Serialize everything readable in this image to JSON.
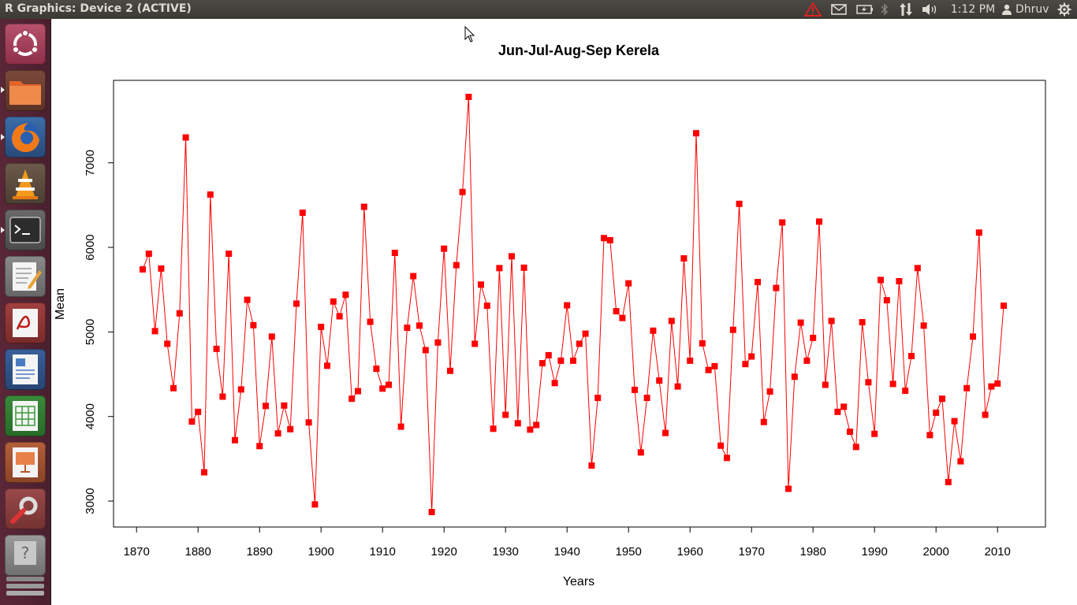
{
  "window": {
    "title": "R Graphics: Device 2 (ACTIVE)"
  },
  "panel": {
    "clock": "1:12 PM",
    "user": "Dhruv"
  },
  "launcher": {
    "items": [
      {
        "name": "ubuntu-dash-icon"
      },
      {
        "name": "files-icon"
      },
      {
        "name": "firefox-icon"
      },
      {
        "name": "vlc-icon"
      },
      {
        "name": "terminal-icon"
      },
      {
        "name": "text-editor-icon"
      },
      {
        "name": "pdf-viewer-icon"
      },
      {
        "name": "writer-icon"
      },
      {
        "name": "calc-icon"
      },
      {
        "name": "impress-icon"
      },
      {
        "name": "system-settings-icon"
      },
      {
        "name": "unknown-app-icon"
      }
    ]
  },
  "chart_data": {
    "type": "line",
    "title": "Jun-Jul-Aug-Sep Kerela",
    "xlabel": "Years",
    "ylabel": "Mean",
    "xlim": [
      1871,
      2011
    ],
    "ylim": [
      2870,
      7780
    ],
    "x_ticks": [
      1870,
      1880,
      1890,
      1900,
      1910,
      1920,
      1930,
      1940,
      1950,
      1960,
      1970,
      1980,
      1990,
      2000,
      2010
    ],
    "y_ticks": [
      3000,
      4000,
      5000,
      6000,
      7000
    ],
    "marker_color": "#ff0000",
    "line_color": "#ff0000",
    "series": [
      {
        "x_start": 1871,
        "values": [
          5740,
          5925,
          5010,
          5750,
          4860,
          4335,
          5220,
          7300,
          3940,
          4055,
          3340,
          6625,
          4800,
          4235,
          5925,
          3720,
          4320,
          5380,
          5080,
          3650,
          4125,
          4945,
          3800,
          4130,
          3850,
          5335,
          6410,
          3930,
          2960,
          5060,
          4600,
          5360,
          5185,
          5440,
          4210,
          4300,
          6480,
          5120,
          4565,
          4330,
          4375,
          5935,
          3880,
          5050,
          5660,
          5075,
          4785,
          2870,
          4875,
          5985,
          4540,
          5790,
          6655,
          7780,
          4860,
          5560,
          5310,
          3855,
          5755,
          4020,
          5895,
          3920,
          5760,
          3845,
          3900,
          4630,
          4725,
          4395,
          4660,
          5315,
          4660,
          4860,
          4980,
          3420,
          4220,
          6110,
          6085,
          5245,
          5165,
          5575,
          4315,
          3575,
          4220,
          5015,
          4425,
          3805,
          5130,
          4355,
          5870,
          4660,
          7350,
          4865,
          4550,
          4595,
          3655,
          3510,
          5025,
          6515,
          4620,
          4710,
          5590,
          3935,
          4295,
          5520,
          6295,
          3145,
          4470,
          5110,
          4660,
          4930,
          6305,
          4375,
          5130,
          4055,
          4115,
          3820,
          3640,
          5115,
          4405,
          3795,
          5615,
          5375,
          4385,
          5600,
          4305,
          4715,
          5755,
          5075,
          3780,
          4045,
          4210,
          3225,
          3945,
          3470,
          4335,
          4945,
          6175,
          4020,
          4355,
          4390,
          5310
        ]
      }
    ]
  }
}
